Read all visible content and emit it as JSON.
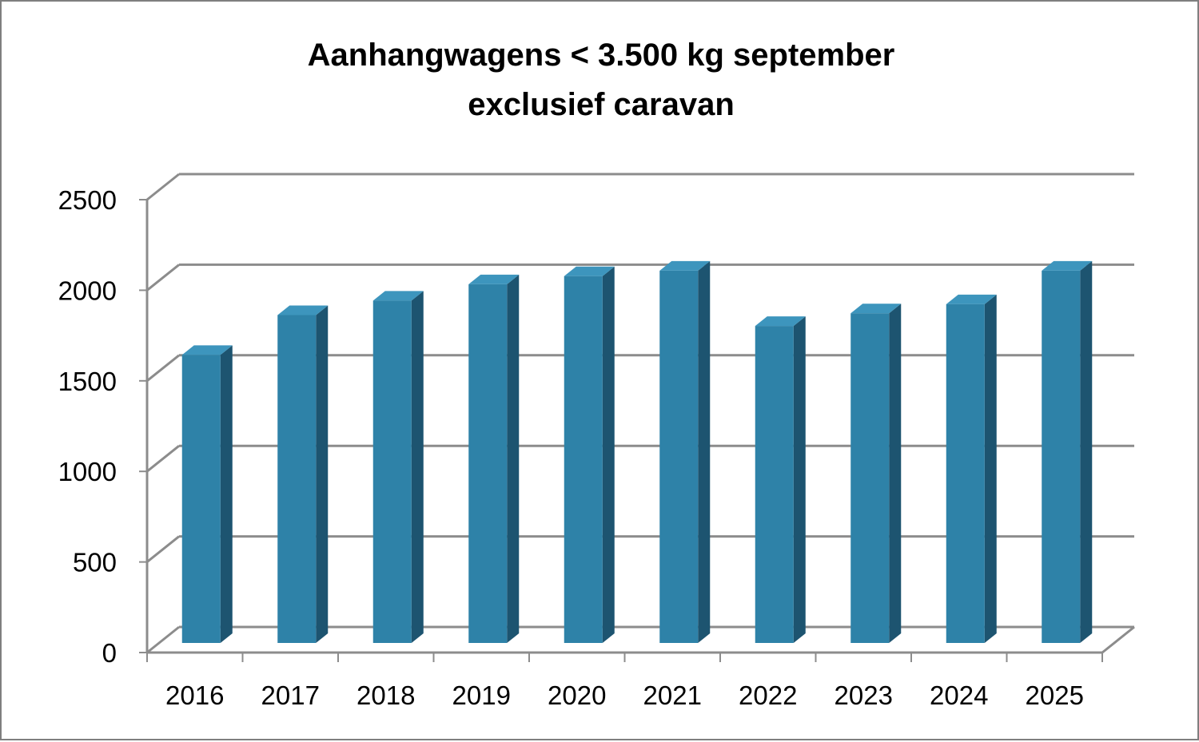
{
  "chart_data": {
    "type": "bar",
    "title_lines": [
      "Aanhangwagens < 3.500 kg september",
      "exclusief caravan"
    ],
    "categories": [
      "2016",
      "2017",
      "2018",
      "2019",
      "2020",
      "2021",
      "2022",
      "2023",
      "2024",
      "2025"
    ],
    "values": [
      1590,
      1810,
      1890,
      1980,
      2025,
      2055,
      1750,
      1820,
      1870,
      2055
    ],
    "ylim": [
      0,
      2500
    ],
    "yticks": [
      0,
      500,
      1000,
      1500,
      2000,
      2500
    ],
    "grid": true,
    "legend": "none",
    "style": "3d-column",
    "colors": {
      "bar_front": "#2e82a8",
      "bar_side": "#1d5470",
      "bar_top": "#3d95bd",
      "grid": "#8c8c8c",
      "axis": "#8c8c8c"
    }
  }
}
